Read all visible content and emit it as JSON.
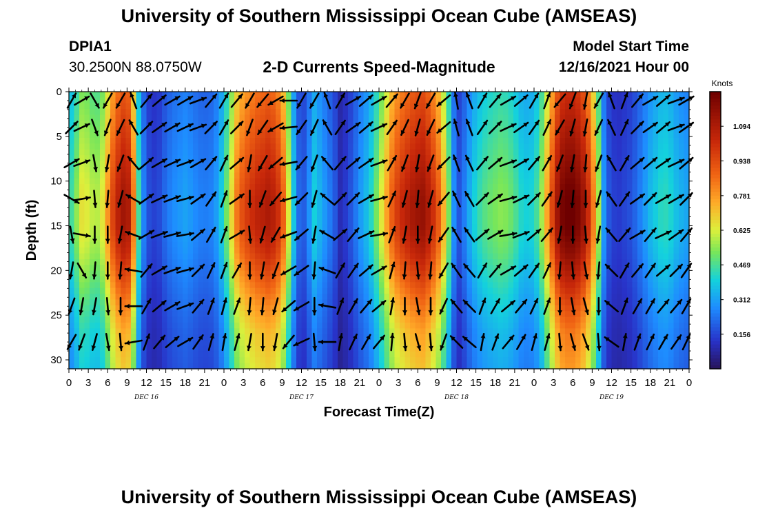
{
  "header": {
    "title": "University of Southern Mississippi Ocean Cube (AMSEAS)",
    "station_name": "DPIA1",
    "station_coords": "30.2500N  88.0750W",
    "model_start_label": "Model Start Time",
    "model_start_value": "12/16/2021 Hour 00",
    "footer_title": "University of Southern Mississippi Ocean Cube (AMSEAS)"
  },
  "chart_data": {
    "type": "heatmap",
    "title": "2-D Currents Speed-Magnitude",
    "xlabel": "Forecast Time(Z)",
    "ylabel": "Depth (ft)",
    "colorbar_label": "Knots",
    "colorbar_ticks": [
      0.156,
      0.312,
      0.469,
      0.625,
      0.781,
      0.938,
      1.094
    ],
    "colorbar_range": [
      0,
      1.25
    ],
    "xlim_hours": [
      0,
      96
    ],
    "ylim_ft": [
      0,
      31
    ],
    "y_ticks": [
      0,
      5,
      10,
      15,
      20,
      25,
      30
    ],
    "x_ticks": [
      {
        "h": 0,
        "label": "0"
      },
      {
        "h": 3,
        "label": "3"
      },
      {
        "h": 6,
        "label": "6"
      },
      {
        "h": 9,
        "label": "9"
      },
      {
        "h": 12,
        "label": "12"
      },
      {
        "h": 15,
        "label": "15"
      },
      {
        "h": 18,
        "label": "18"
      },
      {
        "h": 21,
        "label": "21"
      },
      {
        "h": 24,
        "label": "0"
      },
      {
        "h": 27,
        "label": "3"
      },
      {
        "h": 30,
        "label": "6"
      },
      {
        "h": 33,
        "label": "9"
      },
      {
        "h": 36,
        "label": "12"
      },
      {
        "h": 39,
        "label": "15"
      },
      {
        "h": 42,
        "label": "18"
      },
      {
        "h": 45,
        "label": "21"
      },
      {
        "h": 48,
        "label": "0"
      },
      {
        "h": 51,
        "label": "3"
      },
      {
        "h": 54,
        "label": "6"
      },
      {
        "h": 57,
        "label": "9"
      },
      {
        "h": 60,
        "label": "12"
      },
      {
        "h": 63,
        "label": "15"
      },
      {
        "h": 66,
        "label": "18"
      },
      {
        "h": 69,
        "label": "21"
      },
      {
        "h": 72,
        "label": "0"
      },
      {
        "h": 75,
        "label": "3"
      },
      {
        "h": 78,
        "label": "6"
      },
      {
        "h": 81,
        "label": "9"
      },
      {
        "h": 84,
        "label": "12"
      },
      {
        "h": 87,
        "label": "15"
      },
      {
        "h": 90,
        "label": "18"
      },
      {
        "h": 93,
        "label": "21"
      },
      {
        "h": 96,
        "label": "0"
      }
    ],
    "day_labels": [
      {
        "h": 12,
        "label": "DEC 16"
      },
      {
        "h": 36,
        "label": "DEC 17"
      },
      {
        "h": 60,
        "label": "DEC 18"
      },
      {
        "h": 84,
        "label": "DEC 19"
      }
    ],
    "time_profile_knots": [
      [
        0,
        0.4
      ],
      [
        1,
        0.5
      ],
      [
        2,
        0.62
      ],
      [
        3,
        0.6
      ],
      [
        4,
        0.55
      ],
      [
        5,
        0.58
      ],
      [
        6,
        0.75
      ],
      [
        7,
        0.95
      ],
      [
        8,
        1.05
      ],
      [
        9,
        1.1
      ],
      [
        10,
        0.8
      ],
      [
        11,
        0.35
      ],
      [
        12,
        0.18
      ],
      [
        13,
        0.14
      ],
      [
        14,
        0.16
      ],
      [
        15,
        0.22
      ],
      [
        16,
        0.26
      ],
      [
        17,
        0.28
      ],
      [
        18,
        0.3
      ],
      [
        19,
        0.28
      ],
      [
        20,
        0.25
      ],
      [
        21,
        0.24
      ],
      [
        22,
        0.25
      ],
      [
        23,
        0.3
      ],
      [
        24,
        0.42
      ],
      [
        25,
        0.6
      ],
      [
        26,
        0.8
      ],
      [
        27,
        0.9
      ],
      [
        28,
        0.95
      ],
      [
        29,
        1.0
      ],
      [
        30,
        1.02
      ],
      [
        31,
        1.05
      ],
      [
        32,
        1.0
      ],
      [
        33,
        0.9
      ],
      [
        34,
        0.6
      ],
      [
        35,
        0.3
      ],
      [
        36,
        0.15
      ],
      [
        37,
        0.25
      ],
      [
        38,
        0.38
      ],
      [
        39,
        0.32
      ],
      [
        40,
        0.26
      ],
      [
        41,
        0.2
      ],
      [
        42,
        0.1
      ],
      [
        43,
        0.14
      ],
      [
        44,
        0.2
      ],
      [
        45,
        0.28
      ],
      [
        46,
        0.34
      ],
      [
        47,
        0.42
      ],
      [
        48,
        0.55
      ],
      [
        49,
        0.7
      ],
      [
        50,
        0.85
      ],
      [
        51,
        0.95
      ],
      [
        52,
        1.0
      ],
      [
        53,
        1.05
      ],
      [
        54,
        1.08
      ],
      [
        55,
        1.1
      ],
      [
        56,
        1.0
      ],
      [
        57,
        0.9
      ],
      [
        58,
        0.7
      ],
      [
        59,
        0.45
      ],
      [
        60,
        0.15
      ],
      [
        61,
        0.22
      ],
      [
        62,
        0.32
      ],
      [
        63,
        0.4
      ],
      [
        64,
        0.45
      ],
      [
        65,
        0.48
      ],
      [
        66,
        0.5
      ],
      [
        67,
        0.52
      ],
      [
        68,
        0.5
      ],
      [
        69,
        0.46
      ],
      [
        70,
        0.4
      ],
      [
        71,
        0.38
      ],
      [
        72,
        0.4
      ],
      [
        73,
        0.5
      ],
      [
        74,
        0.72
      ],
      [
        75,
        0.95
      ],
      [
        76,
        1.15
      ],
      [
        77,
        1.2
      ],
      [
        78,
        1.2
      ],
      [
        79,
        1.15
      ],
      [
        80,
        1.05
      ],
      [
        81,
        0.85
      ],
      [
        82,
        0.55
      ],
      [
        83,
        0.22
      ],
      [
        84,
        0.15
      ],
      [
        85,
        0.13
      ],
      [
        86,
        0.15
      ],
      [
        87,
        0.17
      ],
      [
        88,
        0.22
      ],
      [
        89,
        0.28
      ],
      [
        90,
        0.34
      ],
      [
        91,
        0.38
      ],
      [
        92,
        0.42
      ],
      [
        93,
        0.4
      ],
      [
        94,
        0.35
      ],
      [
        95,
        0.32
      ],
      [
        96,
        0.3
      ]
    ],
    "depth_profile_factor": [
      [
        0,
        0.85
      ],
      [
        3,
        0.9
      ],
      [
        6,
        0.95
      ],
      [
        9,
        1.0
      ],
      [
        12,
        1.05
      ],
      [
        15,
        1.05
      ],
      [
        18,
        0.98
      ],
      [
        21,
        0.88
      ],
      [
        24,
        0.78
      ],
      [
        27,
        0.7
      ],
      [
        31,
        0.65
      ]
    ],
    "vectors": {
      "time_step_hours": 2,
      "depths_ft": [
        1,
        4,
        8,
        12,
        16,
        20,
        24,
        28
      ],
      "directions_deg": [
        30,
        60,
        150,
        210,
        210,
        340,
        40,
        50,
        60,
        60,
        70,
        40,
        30,
        40,
        210,
        220,
        240,
        270,
        210,
        210,
        340,
        30,
        60,
        50,
        60,
        40,
        210,
        200,
        210,
        230,
        350,
        340,
        30,
        40,
        60,
        50,
        30,
        20,
        220,
        200,
        190,
        210,
        340,
        20,
        40,
        60,
        50,
        70,
        60,
        45,
        65,
        160,
        200,
        205,
        330,
        45,
        55,
        60,
        65,
        70,
        45,
        30,
        45,
        200,
        215,
        240,
        265,
        215,
        205,
        330,
        35,
        55,
        50,
        65,
        35,
        205,
        195,
        205,
        230,
        345,
        340,
        35,
        45,
        65,
        55,
        35,
        25,
        210,
        195,
        190,
        205,
        335,
        25,
        45,
        55,
        50,
        70,
        55,
        60,
        70,
        170,
        190,
        200,
        320,
        50,
        60,
        65,
        70,
        60,
        40,
        25,
        50,
        190,
        210,
        230,
        260,
        220,
        200,
        320,
        40,
        50,
        55,
        70,
        30,
        200,
        190,
        200,
        225,
        340,
        335,
        40,
        50,
        70,
        60,
        40,
        30,
        200,
        190,
        185,
        200,
        330,
        30,
        50,
        50,
        55,
        65,
        50,
        120,
        80,
        175,
        185,
        195,
        300,
        55,
        65,
        70,
        75,
        55,
        35,
        20,
        55,
        180,
        200,
        220,
        255,
        225,
        195,
        310,
        45,
        45,
        60,
        75,
        25,
        195,
        185,
        195,
        220,
        335,
        330,
        45,
        55,
        75,
        65,
        45,
        35,
        195,
        185,
        180,
        195,
        325,
        35,
        55,
        45,
        60,
        60,
        45,
        170,
        100,
        180,
        180,
        190,
        290,
        60,
        70,
        75,
        80,
        50,
        30,
        20,
        60,
        175,
        195,
        210,
        250,
        230,
        190,
        300,
        50,
        40,
        65,
        80,
        20,
        190,
        180,
        190,
        215,
        330,
        325,
        50,
        60,
        80,
        70,
        50,
        40,
        190,
        180,
        175,
        190,
        320,
        40,
        60,
        40,
        65,
        55,
        40,
        190,
        150,
        185,
        180,
        185,
        280,
        40,
        60,
        70,
        75,
        45,
        25,
        20,
        30,
        180,
        190,
        200,
        240,
        235,
        185,
        290,
        30,
        35,
        50,
        60,
        15,
        185,
        175,
        185,
        210,
        325,
        320,
        30,
        40,
        60,
        50,
        35,
        25,
        185,
        175,
        170,
        185,
        315,
        30,
        40,
        35,
        50,
        45,
        35,
        200,
        190,
        190,
        175,
        180,
        270,
        30,
        50,
        60,
        70,
        40,
        20,
        15,
        20,
        185,
        185,
        195,
        230,
        240,
        180,
        280,
        20,
        30,
        40,
        50,
        10,
        180,
        170,
        180,
        205,
        320,
        315,
        20,
        30,
        50,
        40,
        25,
        20,
        180,
        170,
        165,
        180,
        310,
        20,
        30,
        30,
        40,
        40,
        30,
        210,
        200,
        195,
        170,
        175,
        260,
        20,
        40,
        50,
        60,
        35,
        15,
        10,
        15,
        190,
        180,
        190,
        220,
        245,
        175,
        270,
        10,
        25,
        30,
        40,
        5,
        175,
        165,
        175,
        200,
        315,
        310,
        10,
        20,
        40,
        30,
        15,
        15,
        175,
        165,
        160,
        175,
        305,
        10,
        20,
        25,
        30,
        35,
        25
      ]
    }
  }
}
